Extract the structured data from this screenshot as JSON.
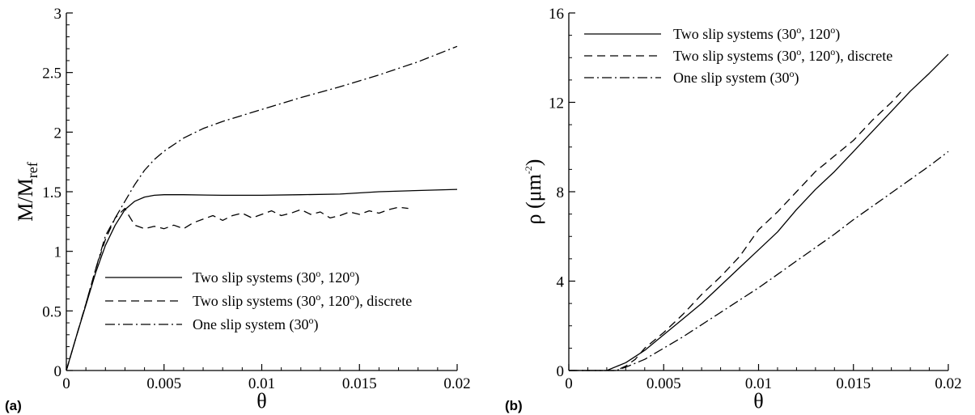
{
  "chart_data": [
    {
      "type": "line",
      "panel_label": "(a)",
      "xlabel": "θ",
      "ylabel": {
        "base": "M/M",
        "sub": "ref"
      },
      "xlim": [
        0,
        0.02
      ],
      "ylim": [
        0,
        3
      ],
      "xticks": [
        "0",
        "0.005",
        "0.01",
        "0.015",
        "0.02"
      ],
      "xtick_values": [
        0,
        0.005,
        0.01,
        0.015,
        0.02
      ],
      "yticks": [
        "0",
        "0.5",
        "1",
        "1.5",
        "2",
        "2.5",
        "3"
      ],
      "ytick_values": [
        0,
        0.5,
        1,
        1.5,
        2,
        2.5,
        3
      ],
      "legend_position": "bottom-right",
      "series": [
        {
          "name": "Two slip systems (30°, 120°)",
          "legend": {
            "pre": "Two slip systems (30",
            "sup1": "o",
            "mid": ", 120",
            "sup2": "o",
            "post": ")"
          },
          "style": "solid",
          "x": [
            0,
            0.0005,
            0.001,
            0.0015,
            0.002,
            0.0025,
            0.003,
            0.0035,
            0.004,
            0.0045,
            0.005,
            0.006,
            0.008,
            0.01,
            0.012,
            0.014,
            0.016,
            0.018,
            0.02
          ],
          "y": [
            0,
            0.28,
            0.55,
            0.82,
            1.05,
            1.22,
            1.35,
            1.42,
            1.455,
            1.47,
            1.475,
            1.475,
            1.47,
            1.47,
            1.475,
            1.48,
            1.5,
            1.51,
            1.52
          ]
        },
        {
          "name": "Two slip systems (30°, 120°), discrete",
          "legend": {
            "pre": "Two slip systems (30",
            "sup1": "o",
            "mid": ", 120",
            "sup2": "o",
            "post": "), discrete"
          },
          "style": "dashed",
          "x": [
            0,
            0.0005,
            0.001,
            0.0015,
            0.002,
            0.0025,
            0.003,
            0.0032,
            0.0035,
            0.004,
            0.0045,
            0.005,
            0.0055,
            0.006,
            0.0065,
            0.007,
            0.0075,
            0.008,
            0.0085,
            0.009,
            0.0095,
            0.01,
            0.0105,
            0.011,
            0.0115,
            0.012,
            0.0125,
            0.013,
            0.0135,
            0.014,
            0.0145,
            0.015,
            0.0155,
            0.016,
            0.0165,
            0.017,
            0.0175
          ],
          "y": [
            0,
            0.28,
            0.56,
            0.85,
            1.1,
            1.28,
            1.36,
            1.3,
            1.22,
            1.19,
            1.21,
            1.19,
            1.22,
            1.19,
            1.24,
            1.27,
            1.3,
            1.26,
            1.3,
            1.32,
            1.28,
            1.31,
            1.34,
            1.3,
            1.32,
            1.35,
            1.31,
            1.33,
            1.28,
            1.3,
            1.33,
            1.31,
            1.34,
            1.32,
            1.35,
            1.37,
            1.36
          ]
        },
        {
          "name": "One slip system (30°)",
          "legend": {
            "pre": "One slip system (30",
            "sup1": "o",
            "mid": "",
            "sup2": "",
            "post": ")"
          },
          "style": "dashdot",
          "x": [
            0,
            0.0005,
            0.001,
            0.0015,
            0.002,
            0.0025,
            0.003,
            0.0035,
            0.004,
            0.0045,
            0.005,
            0.006,
            0.007,
            0.008,
            0.009,
            0.01,
            0.012,
            0.014,
            0.016,
            0.018,
            0.02
          ],
          "y": [
            0,
            0.28,
            0.56,
            0.85,
            1.13,
            1.28,
            1.42,
            1.56,
            1.68,
            1.77,
            1.84,
            1.95,
            2.03,
            2.09,
            2.14,
            2.19,
            2.29,
            2.38,
            2.48,
            2.59,
            2.72
          ]
        }
      ]
    },
    {
      "type": "line",
      "panel_label": "(b)",
      "xlabel": "θ",
      "ylabel": {
        "base": "ρ (μm",
        "sup": "-2",
        "post": ")"
      },
      "xlim": [
        0,
        0.02
      ],
      "ylim": [
        0,
        16
      ],
      "xticks": [
        "0",
        "0.005",
        "0.01",
        "0.015",
        "0.02"
      ],
      "xtick_values": [
        0,
        0.005,
        0.01,
        0.015,
        0.02
      ],
      "yticks": [
        "0",
        "4",
        "8",
        "12",
        "16"
      ],
      "ytick_values": [
        0,
        4,
        8,
        12,
        16
      ],
      "legend_position": "top-left",
      "series": [
        {
          "name": "Two slip systems (30°, 120°)",
          "legend": {
            "pre": "Two slip systems (30",
            "sup1": "o",
            "mid": ", 120",
            "sup2": "o",
            "post": ")"
          },
          "style": "solid",
          "x": [
            0,
            0.002,
            0.003,
            0.004,
            0.005,
            0.006,
            0.007,
            0.008,
            0.009,
            0.01,
            0.011,
            0.012,
            0.013,
            0.014,
            0.015,
            0.016,
            0.017,
            0.018,
            0.019,
            0.02
          ],
          "y": [
            0,
            0,
            0.35,
            0.9,
            1.6,
            2.3,
            3.0,
            3.8,
            4.6,
            5.4,
            6.2,
            7.2,
            8.1,
            8.9,
            9.8,
            10.7,
            11.6,
            12.5,
            13.3,
            14.15
          ]
        },
        {
          "name": "Two slip systems (30°, 120°), discrete",
          "legend": {
            "pre": "Two slip systems (30",
            "sup1": "o",
            "mid": ", 120",
            "sup2": "o",
            "post": "), discrete"
          },
          "style": "dashed",
          "x": [
            0,
            0.0025,
            0.003,
            0.0035,
            0.004,
            0.005,
            0.006,
            0.007,
            0.008,
            0.009,
            0.01,
            0.011,
            0.012,
            0.013,
            0.014,
            0.015,
            0.016,
            0.017,
            0.0175
          ],
          "y": [
            0,
            0,
            0.2,
            0.5,
            1.0,
            1.7,
            2.5,
            3.4,
            4.2,
            5.1,
            6.3,
            7.1,
            8.0,
            8.9,
            9.6,
            10.3,
            11.2,
            12.0,
            12.45
          ]
        },
        {
          "name": "One slip system (30°)",
          "legend": {
            "pre": "One slip system (30",
            "sup1": "o",
            "mid": "",
            "sup2": "",
            "post": ")"
          },
          "style": "dashdot",
          "x": [
            0,
            0.0025,
            0.003,
            0.004,
            0.005,
            0.006,
            0.007,
            0.008,
            0.009,
            0.01,
            0.011,
            0.012,
            0.013,
            0.014,
            0.015,
            0.016,
            0.017,
            0.018,
            0.019,
            0.02
          ],
          "y": [
            0,
            0,
            0.15,
            0.5,
            1.0,
            1.5,
            2.05,
            2.6,
            3.15,
            3.7,
            4.3,
            4.9,
            5.5,
            6.1,
            6.75,
            7.35,
            7.95,
            8.55,
            9.15,
            9.8
          ]
        }
      ]
    }
  ]
}
